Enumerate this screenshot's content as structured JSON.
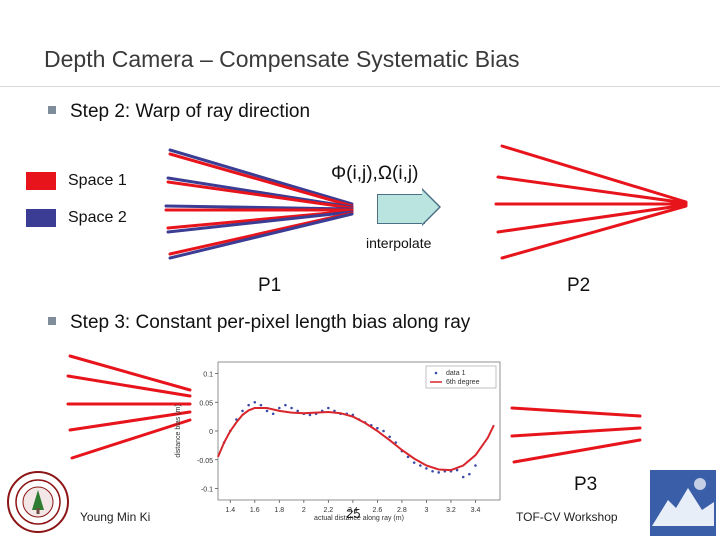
{
  "slide": {
    "title": "Depth Camera – Compensate Systematic Bias",
    "step2": "Step 2: Warp of ray direction",
    "step3": "Step 3: Constant per-pixel length bias along ray",
    "legend": [
      {
        "label": "Space 1",
        "color": "#e8141c"
      },
      {
        "label": "Space 2",
        "color": "#3b3d94"
      }
    ],
    "mapping_formula": "Φ(i,j),Ω(i,j)",
    "arrow_label": "interpolate",
    "p1": "P1",
    "p2": "P2",
    "p3": "P3",
    "footer_left": "Young Min Ki",
    "page_number": "25",
    "footer_right": "TOF-CV Workshop"
  },
  "chart_data": {
    "type": "scatter",
    "xlabel": "actual distance along ray (m)",
    "ylabel": "distance bias (m)",
    "xlim": [
      1.3,
      3.6
    ],
    "ylim": [
      -0.12,
      0.12
    ],
    "x_ticks": [
      "1.4",
      "1.6",
      "1.8",
      "2",
      "2.2",
      "2.4",
      "2.6",
      "2.8",
      "3",
      "3.2",
      "3.4"
    ],
    "y_ticks": [
      "0.1",
      "0.05",
      "0",
      "-0.05",
      "-0.1"
    ],
    "legend": [
      "data 1",
      "6th degree"
    ],
    "series": [
      {
        "name": "data 1",
        "points": [
          [
            1.35,
            -0.02
          ],
          [
            1.4,
            0.0
          ],
          [
            1.45,
            0.02
          ],
          [
            1.5,
            0.035
          ],
          [
            1.55,
            0.045
          ],
          [
            1.6,
            0.05
          ],
          [
            1.65,
            0.045
          ],
          [
            1.7,
            0.035
          ],
          [
            1.75,
            0.03
          ],
          [
            1.8,
            0.04
          ],
          [
            1.85,
            0.045
          ],
          [
            1.9,
            0.04
          ],
          [
            1.95,
            0.035
          ],
          [
            2.0,
            0.03
          ],
          [
            2.05,
            0.028
          ],
          [
            2.1,
            0.03
          ],
          [
            2.15,
            0.035
          ],
          [
            2.2,
            0.04
          ],
          [
            2.25,
            0.035
          ],
          [
            2.3,
            0.03
          ],
          [
            2.35,
            0.03
          ],
          [
            2.4,
            0.028
          ],
          [
            2.45,
            0.02
          ],
          [
            2.5,
            0.015
          ],
          [
            2.55,
            0.01
          ],
          [
            2.6,
            0.005
          ],
          [
            2.65,
            0.0
          ],
          [
            2.7,
            -0.01
          ],
          [
            2.75,
            -0.02
          ],
          [
            2.8,
            -0.035
          ],
          [
            2.85,
            -0.045
          ],
          [
            2.9,
            -0.055
          ],
          [
            2.95,
            -0.06
          ],
          [
            3.0,
            -0.065
          ],
          [
            3.05,
            -0.07
          ],
          [
            3.1,
            -0.072
          ],
          [
            3.15,
            -0.07
          ],
          [
            3.2,
            -0.07
          ],
          [
            3.25,
            -0.068
          ],
          [
            3.3,
            -0.08
          ],
          [
            3.35,
            -0.075
          ],
          [
            3.4,
            -0.06
          ]
        ]
      },
      {
        "name": "6th degree",
        "points": [
          [
            1.3,
            -0.045
          ],
          [
            1.35,
            -0.02
          ],
          [
            1.4,
            0.0
          ],
          [
            1.45,
            0.015
          ],
          [
            1.5,
            0.028
          ],
          [
            1.55,
            0.036
          ],
          [
            1.6,
            0.04
          ],
          [
            1.7,
            0.04
          ],
          [
            1.8,
            0.035
          ],
          [
            1.9,
            0.032
          ],
          [
            2.0,
            0.031
          ],
          [
            2.1,
            0.032
          ],
          [
            2.2,
            0.033
          ],
          [
            2.3,
            0.031
          ],
          [
            2.4,
            0.025
          ],
          [
            2.5,
            0.014
          ],
          [
            2.6,
            0.0
          ],
          [
            2.7,
            -0.016
          ],
          [
            2.8,
            -0.033
          ],
          [
            2.9,
            -0.048
          ],
          [
            3.0,
            -0.06
          ],
          [
            3.1,
            -0.067
          ],
          [
            3.2,
            -0.068
          ],
          [
            3.3,
            -0.06
          ],
          [
            3.4,
            -0.042
          ],
          [
            3.5,
            -0.012
          ],
          [
            3.55,
            0.01
          ]
        ]
      }
    ]
  }
}
